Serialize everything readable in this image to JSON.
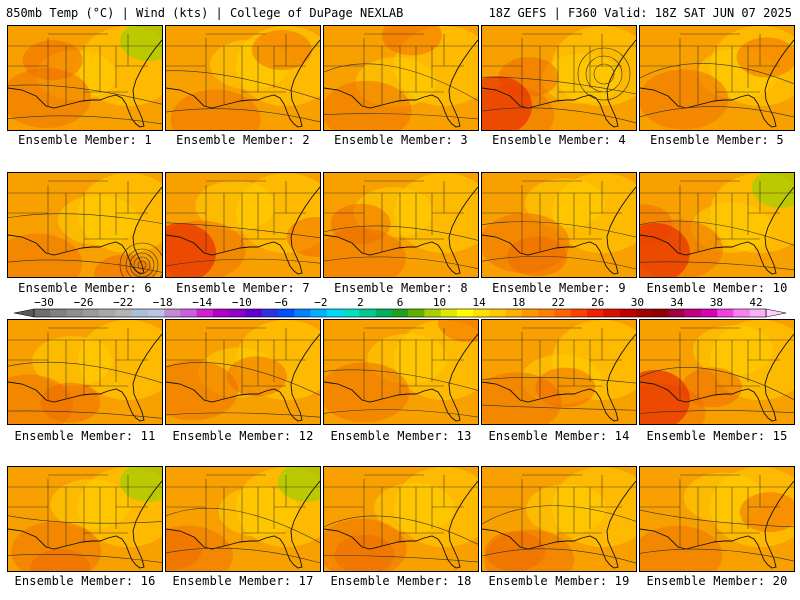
{
  "header": {
    "left_text": "850mb Temp (°C) | Wind (kts) | College of DuPage NEXLAB",
    "right_text": "18Z GEFS | F360 Valid: 18Z SAT JUN 07 2025"
  },
  "panels": [
    {
      "label": "Ensemble Member: 1"
    },
    {
      "label": "Ensemble Member: 2"
    },
    {
      "label": "Ensemble Member: 3"
    },
    {
      "label": "Ensemble Member: 4"
    },
    {
      "label": "Ensemble Member: 5"
    },
    {
      "label": "Ensemble Member: 6"
    },
    {
      "label": "Ensemble Member: 7"
    },
    {
      "label": "Ensemble Member: 8"
    },
    {
      "label": "Ensemble Member: 9"
    },
    {
      "label": "Ensemble Member: 10"
    },
    {
      "label": "Ensemble Member: 11"
    },
    {
      "label": "Ensemble Member: 12"
    },
    {
      "label": "Ensemble Member: 13"
    },
    {
      "label": "Ensemble Member: 14"
    },
    {
      "label": "Ensemble Member: 15"
    },
    {
      "label": "Ensemble Member: 16"
    },
    {
      "label": "Ensemble Member: 17"
    },
    {
      "label": "Ensemble Member: 18"
    },
    {
      "label": "Ensemble Member: 19"
    },
    {
      "label": "Ensemble Member: 20"
    }
  ],
  "colorbar": {
    "tick_labels": [
      "−30",
      "−26",
      "−22",
      "−18",
      "−14",
      "−10",
      "−6",
      "−2",
      "2",
      "6",
      "10",
      "14",
      "18",
      "22",
      "26",
      "30",
      "34",
      "38",
      "42"
    ],
    "colors": [
      "#6f6f6f",
      "#808080",
      "#8e8e8e",
      "#9a9a9a",
      "#a8a8a8",
      "#b4b4b4",
      "#a9bfd6",
      "#b9c4e6",
      "#c58ad6",
      "#c85fe0",
      "#d020d0",
      "#b000c8",
      "#9000c8",
      "#6000d0",
      "#3030e0",
      "#0050ff",
      "#0080ff",
      "#00b0ff",
      "#00d8f8",
      "#00e0c0",
      "#00c890",
      "#00b060",
      "#20a020",
      "#60b000",
      "#a8d000",
      "#e0e800",
      "#ffff00",
      "#ffe000",
      "#ffc800",
      "#ffb000",
      "#ff9800",
      "#ff8000",
      "#ff6400",
      "#ff4000",
      "#f02000",
      "#d81000",
      "#c00000",
      "#a00000",
      "#900000",
      "#a00040",
      "#c00080",
      "#d800b0",
      "#f040e0",
      "#f880f0",
      "#f8b0f8"
    ]
  }
}
